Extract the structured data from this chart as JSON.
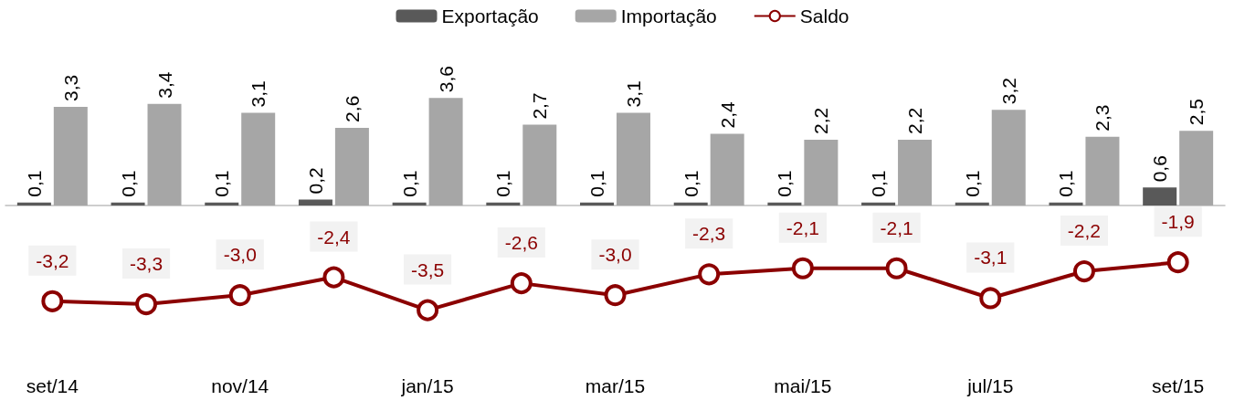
{
  "chart_data": {
    "type": "bar",
    "categories": [
      "set/14",
      null,
      "nov/14",
      null,
      "jan/15",
      null,
      "mar/15",
      null,
      "mai/15",
      null,
      "jul/15",
      null,
      "set/15"
    ],
    "series": [
      {
        "name": "Exportação",
        "color": "#595959",
        "values": [
          0.1,
          0.1,
          0.1,
          0.2,
          0.1,
          0.1,
          0.1,
          0.1,
          0.1,
          0.1,
          0.1,
          0.1,
          0.6
        ],
        "value_labels": [
          "0,1",
          "0,1",
          "0,1",
          "0,2",
          "0,1",
          "0,1",
          "0,1",
          "0,1",
          "0,1",
          "0,1",
          "0,1",
          "0,1",
          "0,6"
        ]
      },
      {
        "name": "Importação",
        "color": "#a6a6a6",
        "values": [
          3.3,
          3.4,
          3.1,
          2.6,
          3.6,
          2.7,
          3.1,
          2.4,
          2.2,
          2.2,
          3.2,
          2.3,
          2.5
        ],
        "value_labels": [
          "3,3",
          "3,4",
          "3,1",
          "2,6",
          "3,6",
          "2,7",
          "3,1",
          "2,4",
          "2,2",
          "2,2",
          "3,2",
          "2,3",
          "2,5"
        ]
      },
      {
        "name": "Saldo",
        "type": "line",
        "color": "#8b0000",
        "marker": "circle",
        "line_style": "solid",
        "values": [
          -3.2,
          -3.3,
          -3.0,
          -2.4,
          -3.5,
          -2.6,
          -3.0,
          -2.3,
          -2.1,
          -2.1,
          -3.1,
          -2.2,
          -1.9
        ],
        "value_labels": [
          "-3,2",
          "-3,3",
          "-3,0",
          "-2,4",
          "-3,5",
          "-2,6",
          "-3,0",
          "-2,3",
          "-2,1",
          "-2,1",
          "-3,1",
          "-2,2",
          "-1,9"
        ]
      }
    ],
    "legend": "top",
    "tick_labels": "x"
  }
}
